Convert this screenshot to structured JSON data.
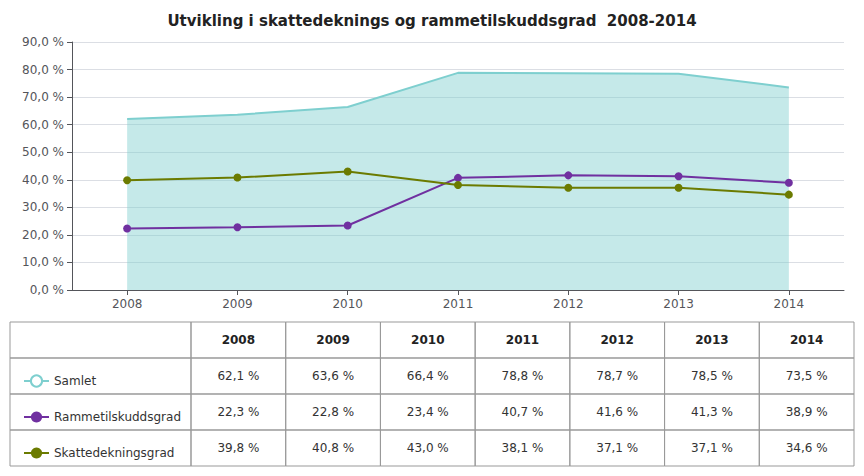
{
  "chart_data": {
    "type": "line",
    "title": "Utvikling i skattedeknings og rammetilskuddsgrad  2008-2014",
    "x": [
      2008,
      2009,
      2010,
      2011,
      2012,
      2013,
      2014
    ],
    "xlim": [
      2007.5,
      2014.5
    ],
    "xticks": [
      2008,
      2009,
      2010,
      2011,
      2012,
      2013,
      2014
    ],
    "ylim": [
      0,
      90
    ],
    "yticks": [
      {
        "value": 0,
        "label": "0,0 %"
      },
      {
        "value": 10,
        "label": "10,0 %"
      },
      {
        "value": 20,
        "label": "20,0 %"
      },
      {
        "value": 30,
        "label": "30,0 %"
      },
      {
        "value": 40,
        "label": "40,0 %"
      },
      {
        "value": 50,
        "label": "50,0 %"
      },
      {
        "value": 60,
        "label": "60,0 %"
      },
      {
        "value": 70,
        "label": "70,0 %"
      },
      {
        "value": 80,
        "label": "80,0 %"
      },
      {
        "value": 90,
        "label": "90,0 %"
      }
    ],
    "grid": true,
    "legend": "bottom",
    "table_header": [
      "2008",
      "2009",
      "2010",
      "2011",
      "2012",
      "2013",
      "2014"
    ],
    "series": [
      {
        "name": "Samlet",
        "type": "area",
        "color": "#7ecfcf",
        "marker": "none",
        "values": [
          62.1,
          63.6,
          66.4,
          78.8,
          78.7,
          78.5,
          73.5
        ],
        "value_labels": [
          "62,1 %",
          "63,6 %",
          "66,4 %",
          "78,8 %",
          "78,7 %",
          "78,5 %",
          "73,5 %"
        ]
      },
      {
        "name": "Rammetilskuddsgrad",
        "type": "line",
        "color": "#7030a0",
        "marker": "circle",
        "values": [
          22.3,
          22.8,
          23.4,
          40.7,
          41.6,
          41.3,
          38.9
        ],
        "value_labels": [
          "22,3 %",
          "22,8 %",
          "23,4 %",
          "40,7 %",
          "41,6 %",
          "41,3 %",
          "38,9 %"
        ]
      },
      {
        "name": "Skattedekningsgrad",
        "type": "line",
        "color": "#6b7b00",
        "marker": "circle",
        "values": [
          39.8,
          40.8,
          43.0,
          38.1,
          37.1,
          37.1,
          34.6
        ],
        "value_labels": [
          "39,8 %",
          "40,8 %",
          "43,0 %",
          "38,1 %",
          "37,1 %",
          "37,1 %",
          "34,6 %"
        ]
      }
    ]
  }
}
